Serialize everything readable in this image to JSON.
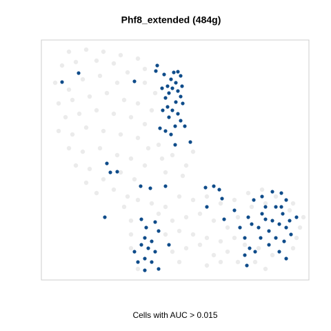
{
  "chart_data": {
    "type": "scatter",
    "title": "Phf8_extended (484g)",
    "x_label": "Cells with AUC > 0.015",
    "xlim": [
      0,
      388
    ],
    "ylim": [
      0,
      348
    ],
    "series": [
      {
        "color": "#e6e6e6",
        "x": [
          40,
          65,
          90,
          115,
          30,
          50,
          80,
          105,
          140,
          150,
          20,
          40,
          60,
          85,
          110,
          125,
          150,
          165,
          25,
          45,
          70,
          95,
          120,
          140,
          160,
          35,
          55,
          80,
          105,
          130,
          150,
          170,
          25,
          45,
          65,
          90,
          115,
          140,
          155,
          40,
          60,
          85,
          110,
          130,
          150,
          50,
          70,
          90,
          115,
          135,
          80,
          105,
          125,
          65,
          175,
          190,
          210,
          220,
          180,
          205,
          120,
          140,
          160,
          180,
          200,
          220,
          240,
          260,
          280,
          300,
          320,
          340,
          365,
          380,
          130,
          170,
          190,
          210,
          230,
          250,
          270,
          285,
          305,
          325,
          360,
          375,
          130,
          180,
          200,
          220,
          240,
          260,
          280,
          295,
          315,
          335,
          365,
          370,
          130,
          190,
          210,
          230,
          250,
          270,
          285,
          310,
          325,
          140,
          200,
          240,
          260
        ],
        "y": [
          331,
          334,
          331,
          326,
          311,
          316,
          318,
          314,
          321,
          306,
          286,
          276,
          291,
          296,
          286,
          301,
          286,
          271,
          256,
          261,
          266,
          271,
          261,
          256,
          246,
          236,
          241,
          246,
          241,
          236,
          226,
          196,
          216,
          211,
          221,
          216,
          211,
          206,
          191,
          191,
          186,
          191,
          181,
          176,
          166,
          166,
          161,
          146,
          156,
          146,
          126,
          131,
          121,
          141,
          176,
          181,
          166,
          186,
          156,
          151,
          106,
          116,
          111,
          106,
          121,
          116,
          121,
          111,
          116,
          126,
          131,
          121,
          111,
          91,
          86,
          96,
          86,
          91,
          96,
          86,
          76,
          91,
          106,
          111,
          101,
          76,
          66,
          66,
          71,
          66,
          61,
          56,
          61,
          51,
          46,
          36,
          46,
          61,
          46,
          41,
          46,
          51,
          36,
          41,
          26,
          26,
          16,
          16,
          26,
          21,
          26
        ]
      },
      {
        "color": "#0f4c8a",
        "x": [
          30,
          54,
          135,
          166,
          168,
          178,
          192,
          198,
          202,
          188,
          195,
          204,
          190,
          198,
          185,
          202,
          180,
          195,
          205,
          183,
          190,
          176,
          198,
          185,
          202,
          172,
          180,
          188,
          194,
          208,
          216,
          194,
          183,
          175,
          95,
          100,
          110,
          92,
          144,
          158,
          180,
          145,
          152,
          165,
          170,
          150,
          160,
          145,
          155,
          165,
          135,
          150,
          160,
          185,
          170,
          150,
          140,
          238,
          250,
          258,
          262,
          240,
          265,
          280,
          288,
          300,
          305,
          295,
          302,
          310,
          298,
          295,
          308,
          320,
          325,
          335,
          348,
          355,
          340,
          350,
          360,
          370,
          335,
          345,
          355,
          330,
          318,
          340,
          352,
          362,
          330,
          345,
          355,
          348,
          325,
          315,
          320
        ],
        "y": [
          287,
          300,
          288,
          303,
          311,
          298,
          301,
          302,
          296,
          291,
          286,
          281,
          278,
          274,
          271,
          266,
          264,
          258,
          256,
          251,
          246,
          246,
          241,
          236,
          231,
          220,
          216,
          211,
          223,
          223,
          200,
          196,
          281,
          278,
          169,
          156,
          157,
          91,
          136,
          133,
          136,
          88,
          76,
          84,
          71,
          61,
          56,
          51,
          46,
          41,
          41,
          31,
          26,
          51,
          16,
          14,
          26,
          134,
          136,
          131,
          118,
          106,
          88,
          101,
          76,
          91,
          81,
          61,
          46,
          41,
          21,
          36,
          116,
          121,
          106,
          128,
          126,
          116,
          106,
          96,
          86,
          91,
          86,
          81,
          76,
          71,
          61,
          61,
          56,
          66,
          51,
          41,
          31,
          106,
          88,
          76,
          96
        ]
      }
    ]
  }
}
